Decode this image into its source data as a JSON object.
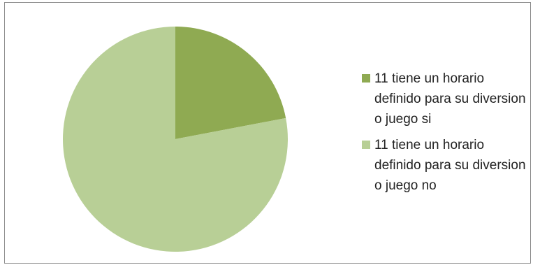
{
  "chart_data": {
    "type": "pie",
    "title": "",
    "categories": [
      "11 tiene un horario definido para su diversion o juego si",
      "11 tiene un horario definido para su diversion o juego no"
    ],
    "values": [
      22,
      78
    ],
    "colors": [
      "#8faa52",
      "#b8cf96"
    ],
    "start_angle_deg": 0,
    "direction": "clockwise",
    "legend_position": "right"
  },
  "legend": {
    "items": [
      {
        "label": "11 tiene un horario definido para su diversion o juego si",
        "color": "#8faa52"
      },
      {
        "label": "11 tiene un horario definido para su diversion o juego no",
        "color": "#b8cf96"
      }
    ]
  }
}
